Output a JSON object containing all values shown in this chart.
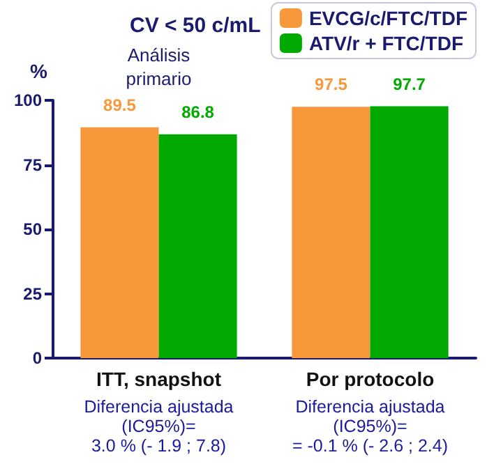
{
  "chart_data": {
    "type": "bar",
    "title": "CV < 50 c/mL",
    "ylabel": "%",
    "categories": [
      "ITT, snapshot",
      "Por protocolo"
    ],
    "series": [
      {
        "name": "EVCG/c/FTC/TDF",
        "color": "#f7983a",
        "values": [
          89.5,
          97.5
        ]
      },
      {
        "name": "ATV/r + FTC/TDF",
        "color": "#00aa00",
        "values": [
          86.8,
          97.7
        ]
      }
    ],
    "ylim": [
      0,
      100
    ],
    "yticks": [
      0,
      25,
      50,
      75,
      100
    ],
    "grid": false,
    "legend": "top right",
    "data_labels": true,
    "annotations": [
      "Análisis\nprimario",
      "Diferencia ajustada\n(IC95%)=\n3.0 % (- 1.9 ; 7.8)",
      "Diferencia ajustada\n(IC95%)=\n= -0.1 % (- 2.6 ; 2.4)"
    ]
  }
}
